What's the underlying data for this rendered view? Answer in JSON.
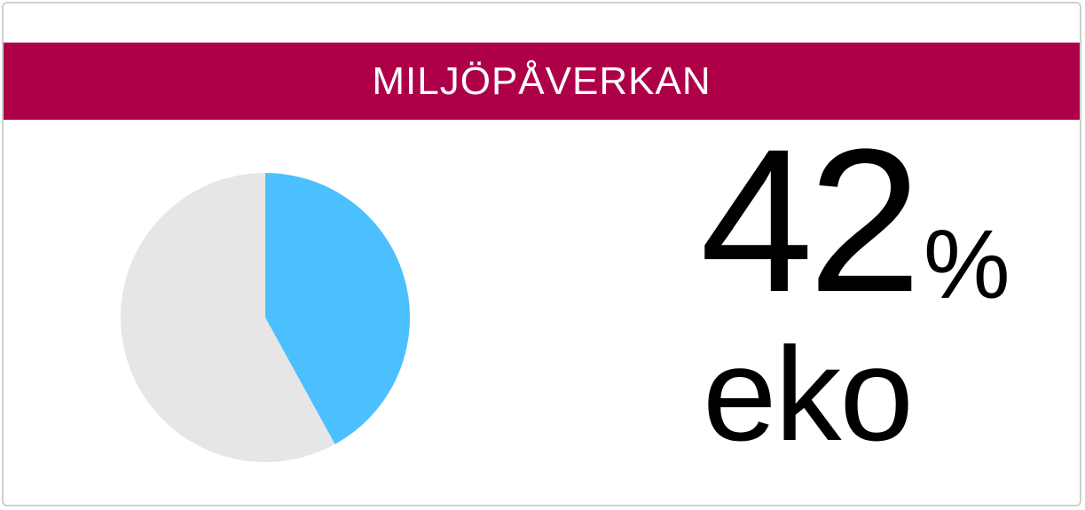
{
  "header": {
    "title": "MILJÖPÅVERKAN"
  },
  "colors": {
    "banner": "#ad0048",
    "slice_eco": "#4cc0ff",
    "slice_rest": "#e6e6e6"
  },
  "stat": {
    "value": "42",
    "unit": "%",
    "label": "eko"
  },
  "chart_data": {
    "type": "pie",
    "slices": [
      {
        "value": 42,
        "color": "#4cc0ff"
      },
      {
        "value": 58,
        "color": "#e6e6e6"
      }
    ]
  }
}
